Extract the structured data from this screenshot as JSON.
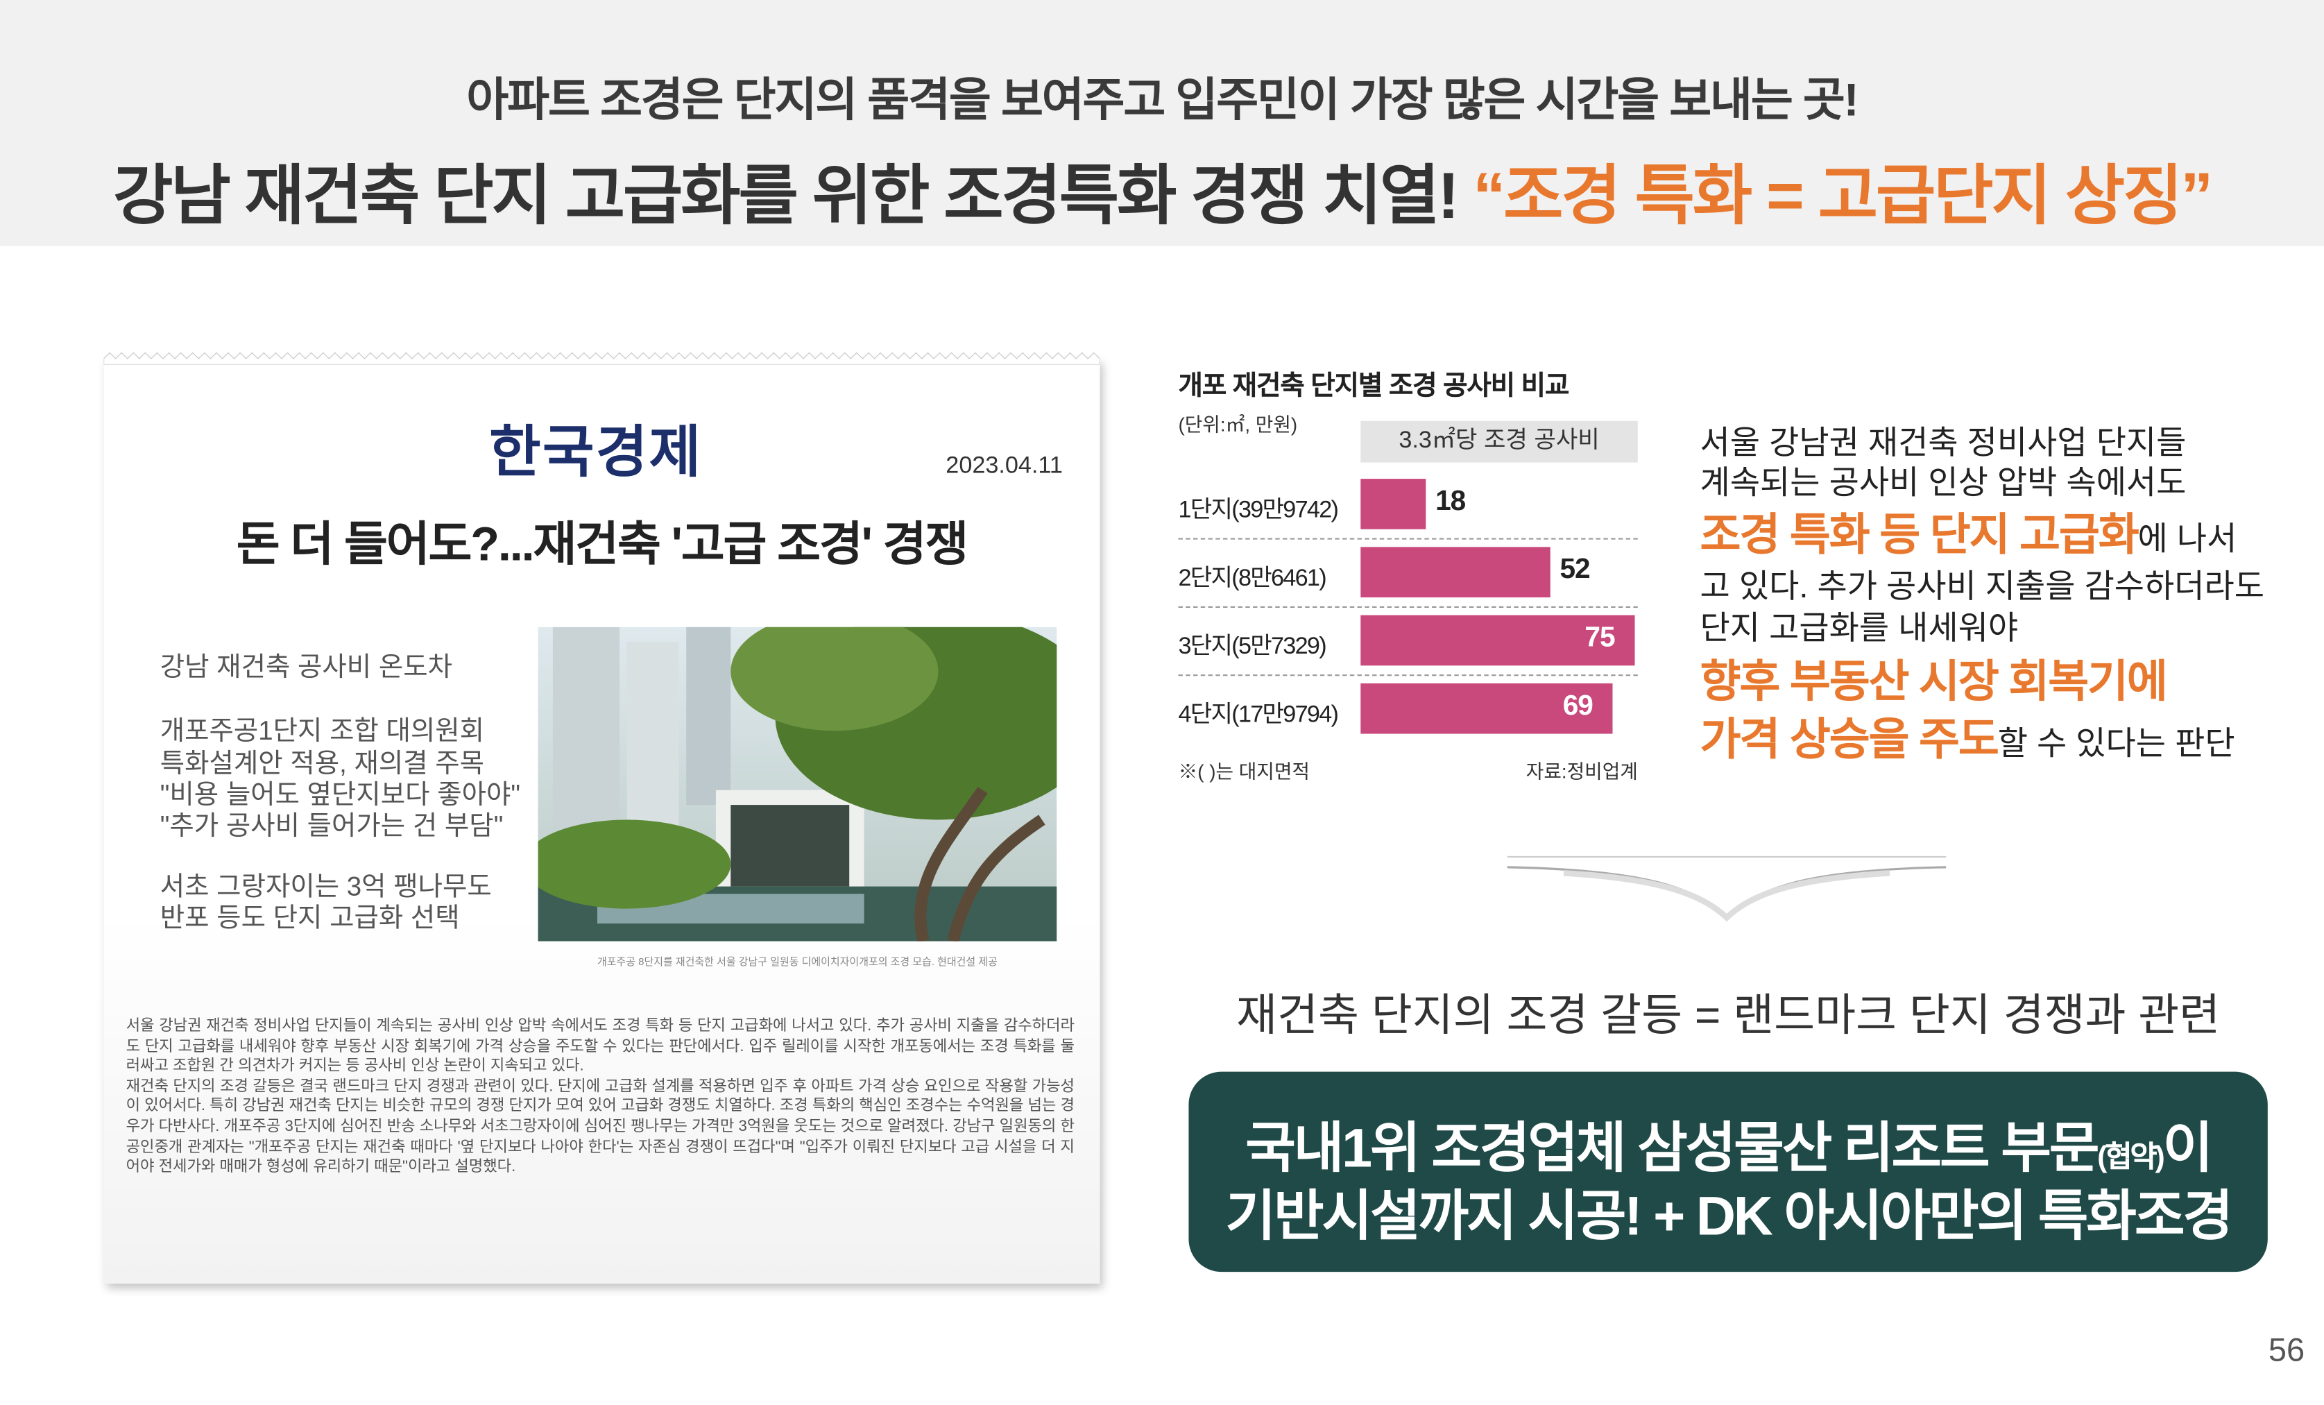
{
  "header": {
    "subtitle": "아파트 조경은 단지의 품격을 보여주고 입주민이 가장 많은 시간을 보내는 곳!",
    "title": "강남 재건축 단지 고급화를 위한 조경특화 경쟁 치열!",
    "title_highlight": "“조경 특화 = 고급단지 상징”"
  },
  "article": {
    "logo": "한국경제",
    "date": "2023.04.11",
    "headline": "돈 더 들어도?...재건축 '고급 조경' 경쟁",
    "summary": [
      "강남 재건축 공사비 온도차",
      "개포주공1단지 조합 대의원회",
      "특화설계안 적용, 재의결 주목",
      "\"비용 늘어도 옆단지보다 좋아야\"",
      "\"추가 공사비 들어가는 건 부담\"",
      "서초 그랑자이는 3억 팽나무도",
      "반포 등도 단지 고급화 선택"
    ],
    "photo_caption": "개포주공 8단지를 재건축한 서울 강남구 일원동 디에이치자이개포의 조경 모습. 현대건설 제공",
    "body": [
      "서울 강남권 재건축 정비사업 단지들이 계속되는 공사비 인상 압박 속에서도 조경 특화 등 단지 고급화에 나서고 있다. 추가 공사비 지출을 감수하더라도 단지 고급화를 내세워야 향후 부동산 시장 회복기에 가격 상승을 주도할 수 있다는 판단에서다. 입주 릴레이를 시작한 개포동에서는 조경 특화를 둘러싸고 조합원 간 의견차가 커지는 등 공사비 인상 논란이 지속되고 있다.",
      "재건축 단지의 조경 갈등은 결국 랜드마크 단지 경쟁과 관련이 있다. 단지에 고급화 설계를 적용하면 입주 후 아파트 가격 상승 요인으로 작용할 가능성이 있어서다. 특히 강남권 재건축 단지는 비슷한 규모의 경쟁 단지가 모여 있어 고급화 경쟁도 치열하다. 조경 특화의 핵심인 조경수는 수억원을 넘는 경우가 다반사다. 개포주공 3단지에 심어진 반송 소나무와 서초그랑자이에 심어진 팽나무는 가격만 3억원을 웃도는 것으로 알려졌다. 강남구 일원동의 한 공인중개 관계자는 \"개포주공 단지는 재건축 때마다 '옆 단지보다 나아야 한다'는 자존심 경쟁이 뜨겁다\"며 \"입주가 이뤄진 단지보다 고급 시설을 더 지어야 전세가와 매매가 형성에 유리하기 때문\"이라고 설명했다."
    ]
  },
  "chart_data": {
    "type": "bar",
    "orientation": "horizontal",
    "title": "개포 재건축 단지별 조경 공사비 비교",
    "unit": "(단위:㎡, 만원)",
    "series_name": "3.3㎡당 조경 공사비",
    "categories": [
      "1단지(39만9742)",
      "2단지(8만6461)",
      "3단지(5만7329)",
      "4단지(17만9794)"
    ],
    "values": [
      18,
      52,
      75,
      69
    ],
    "color": "#c9497c",
    "note": "※( )는 대지면적",
    "source": "자료:정비업계"
  },
  "right_text": [
    "서울 강남권 재건축 정비사업 단지들",
    "계속되는 공사비 인상 압박 속에서도",
    "조경 특화 등 단지 고급화",
    "에 나서",
    "고 있다. 추가 공사비 지출을 감수하더라도",
    "단지 고급화를 내세워야",
    "향후 부동산 시장 회복기에",
    "가격 상승을 주도",
    "할 수 있다는 판단"
  ],
  "conclusion": "재건축 단지의 조경 갈등 = 랜드마크 단지 경쟁과 관련",
  "box": {
    "line1": "국내1위 조경업체 삼성물산 리조트 부문",
    "line1_small": "(협약)",
    "line1_end": "이",
    "line2": "기반시설까지 시공! + DK 아시아만의 특화조경"
  },
  "page_number": "56"
}
